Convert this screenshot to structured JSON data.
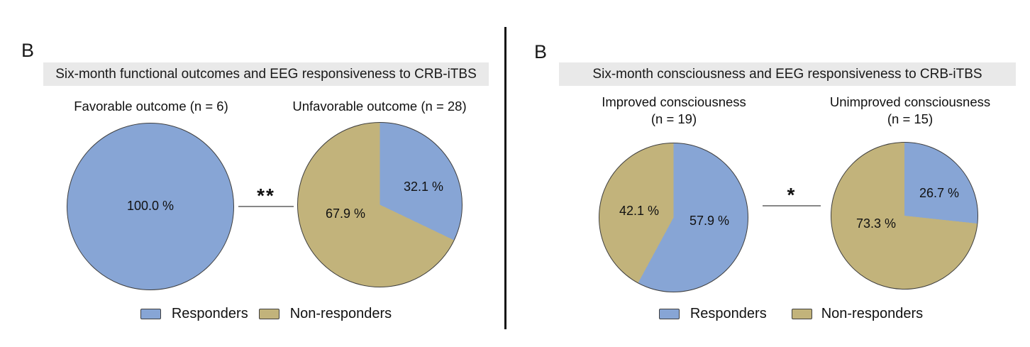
{
  "figure": {
    "panels": [
      {
        "label": "B",
        "title": "Six-month functional outcomes and EEG responsiveness to CRB-iTBS",
        "significance": "**",
        "legend": {
          "responders": "Responders",
          "non_responders": "Non-responders"
        }
      },
      {
        "label": "B",
        "title": "Six-month consciousness and EEG responsiveness to CRB-iTBS",
        "significance": "*",
        "legend": {
          "responders": "Responders",
          "non_responders": "Non-responders"
        }
      }
    ]
  },
  "colors": {
    "responders": "#87A5D5",
    "non_responders": "#C2B37B",
    "title_bg": "#E9E9E9",
    "pie_border": "#3E3E3E",
    "sig_line": "#878787",
    "divider": "#141414"
  },
  "chart_data": [
    {
      "type": "pie",
      "title": "Favorable outcome (n = 6)",
      "title_line1": "Favorable outcome (n = 6)",
      "title_line2": "",
      "labels": [
        "Responders"
      ],
      "values": [
        100.0
      ],
      "slice_labels": [
        "100.0 %"
      ],
      "colors": [
        "#87A5D5"
      ],
      "start_angle_deg": 0,
      "direction": "clockwise"
    },
    {
      "type": "pie",
      "title": "Unfavorable outcome (n = 28)",
      "title_line1": "Unfavorable outcome (n = 28)",
      "title_line2": "",
      "labels": [
        "Responders",
        "Non-responders"
      ],
      "values": [
        32.1,
        67.9
      ],
      "slice_labels": [
        "32.1 %",
        "67.9 %"
      ],
      "colors": [
        "#87A5D5",
        "#C2B37B"
      ],
      "start_angle_deg": 0,
      "direction": "clockwise"
    },
    {
      "type": "pie",
      "title": "Improved consciousness (n = 19)",
      "title_line1": "Improved consciousness",
      "title_line2": "(n = 19)",
      "labels": [
        "Responders",
        "Non-responders"
      ],
      "values": [
        57.9,
        42.1
      ],
      "slice_labels": [
        "57.9 %",
        "42.1 %"
      ],
      "colors": [
        "#87A5D5",
        "#C2B37B"
      ],
      "start_angle_deg": 0,
      "direction": "clockwise"
    },
    {
      "type": "pie",
      "title": "Unimproved consciousness (n = 15)",
      "title_line1": "Unimproved consciousness",
      "title_line2": "(n = 15)",
      "labels": [
        "Responders",
        "Non-responders"
      ],
      "values": [
        26.7,
        73.3
      ],
      "slice_labels": [
        "26.7 %",
        "73.3 %"
      ],
      "colors": [
        "#87A5D5",
        "#C2B37B"
      ],
      "start_angle_deg": 0,
      "direction": "clockwise"
    }
  ]
}
